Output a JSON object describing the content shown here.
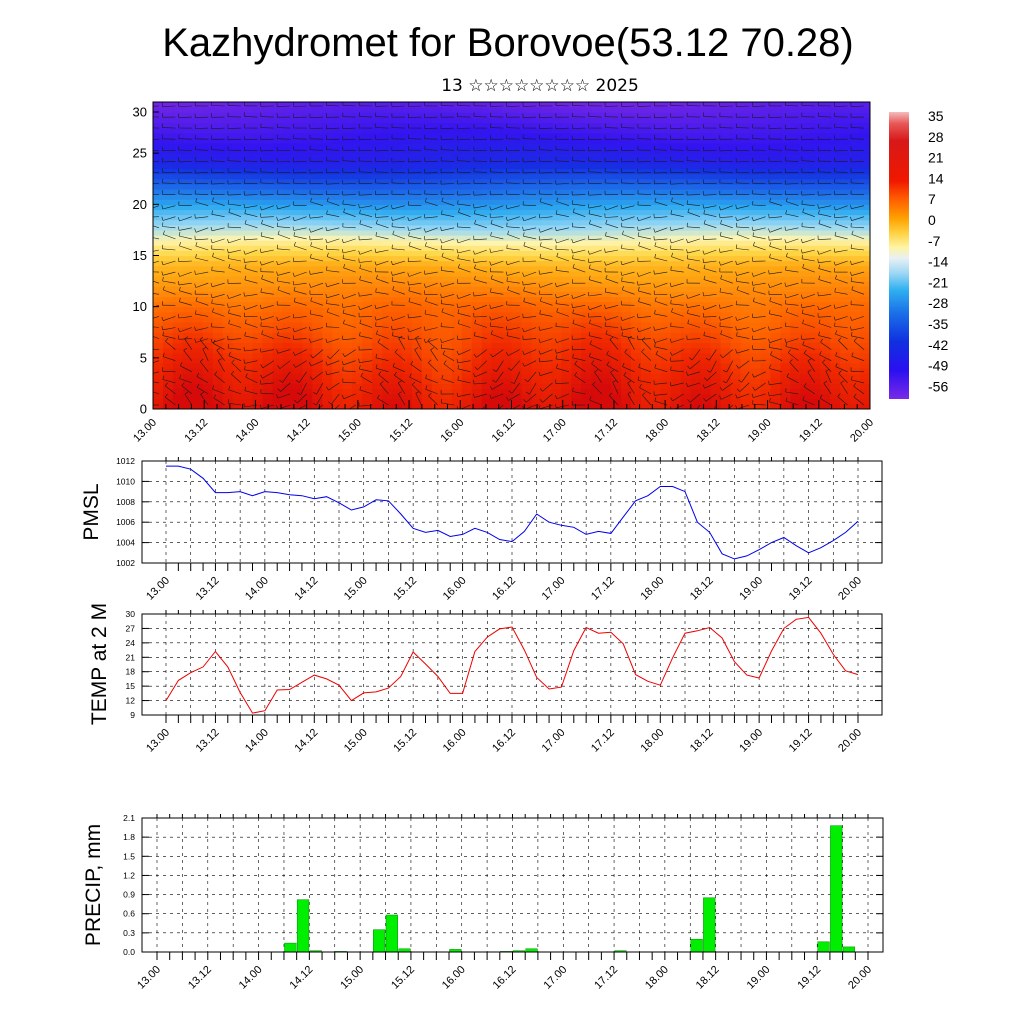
{
  "title": "Kazhydromet for Borovoe(53.12 70.28)",
  "subtitle": "13 ☆☆☆☆☆☆☆☆ 2025",
  "date_labels": [
    "13.00",
    "13.12",
    "14.00",
    "14.12",
    "15.00",
    "15.12",
    "16.00",
    "16.12",
    "17.00",
    "17.12",
    "18.00",
    "18.12",
    "19.00",
    "19.12",
    "20.00"
  ],
  "colors": {
    "pmsl_line": "#0000ee",
    "temp_line": "#ee0000",
    "precip_bar": "#00ee00",
    "precip_edge": "#008800"
  },
  "chart_data": [
    {
      "type": "heatmap",
      "name": "cross-section",
      "ylim": [
        0,
        30
      ],
      "yticks": [
        "0",
        "5",
        "10",
        "15",
        "20",
        "25",
        "30"
      ],
      "colorbar": {
        "labels": [
          "35",
          "28",
          "21",
          "14",
          "7",
          "0",
          "-7",
          "-14",
          "-21",
          "-28",
          "-35",
          "-42",
          "-49",
          "-56"
        ]
      },
      "temperature_profile": [
        {
          "level": 0,
          "value": 30
        },
        {
          "level": 5,
          "value": 21
        },
        {
          "level": 10,
          "value": 12
        },
        {
          "level": 14,
          "value": 2
        },
        {
          "level": 17,
          "value": -16
        },
        {
          "level": 20,
          "value": -30
        },
        {
          "level": 24,
          "value": -48
        },
        {
          "level": 30,
          "value": -58
        }
      ],
      "overlay": "wind barbs"
    },
    {
      "type": "line",
      "name": "PMSL",
      "ylabel": "PMSL",
      "ylim": [
        1002,
        1012
      ],
      "yticks": [
        "1002",
        "1004",
        "1006",
        "1008",
        "1010",
        "1012"
      ],
      "x_start": "13.00",
      "x_step_hours": 3,
      "values": [
        1011.5,
        1011.5,
        1011.2,
        1010.3,
        1008.9,
        1008.9,
        1009.0,
        1008.6,
        1009.0,
        1008.9,
        1008.7,
        1008.6,
        1008.3,
        1008.5,
        1007.9,
        1007.2,
        1007.5,
        1008.2,
        1008.1,
        1006.8,
        1005.4,
        1005.0,
        1005.2,
        1004.6,
        1004.8,
        1005.4,
        1005.0,
        1004.3,
        1004.1,
        1005.1,
        1006.8,
        1006.0,
        1005.7,
        1005.5,
        1004.8,
        1005.1,
        1004.9,
        1006.5,
        1008.1,
        1008.6,
        1009.5,
        1009.5,
        1009.0,
        1006.0,
        1005.0,
        1002.9,
        1002.4,
        1002.7,
        1003.3,
        1004.0,
        1004.5,
        1003.7,
        1003.0,
        1003.5,
        1004.2,
        1005.0,
        1006.1
      ]
    },
    {
      "type": "line",
      "name": "TEMP at 2 M",
      "ylabel": "TEMP at 2 M",
      "ylim": [
        9,
        30
      ],
      "yticks": [
        "9",
        "12",
        "15",
        "18",
        "21",
        "24",
        "27",
        "30"
      ],
      "x_start": "13.00",
      "x_step_hours": 3,
      "values": [
        12.0,
        16.2,
        17.8,
        19.0,
        22.2,
        19.0,
        13.7,
        9.4,
        9.9,
        14.2,
        14.3,
        15.8,
        17.3,
        16.5,
        15.2,
        12.0,
        13.6,
        13.8,
        14.6,
        17.0,
        22.1,
        19.6,
        17.0,
        13.5,
        13.5,
        22.2,
        25.2,
        26.9,
        27.3,
        22.5,
        16.8,
        14.4,
        14.8,
        22.4,
        27.2,
        26.0,
        26.2,
        23.8,
        17.4,
        16.0,
        15.2,
        20.9,
        26.0,
        26.5,
        27.2,
        25.0,
        20.1,
        17.3,
        16.7,
        22.3,
        27.0,
        28.9,
        29.3,
        26.0,
        21.6,
        18.2,
        17.4
      ]
    },
    {
      "type": "bar",
      "name": "PRECIP, mm",
      "ylabel": "PRECIP, mm",
      "ylim": [
        0,
        2.1
      ],
      "yticks": [
        "0.0",
        "0.3",
        "0.6",
        "0.9",
        "1.2",
        "1.5",
        "1.8",
        "2.1"
      ],
      "x_start": "13.00",
      "x_step_hours": 3,
      "values": [
        0,
        0,
        0,
        0,
        0,
        0,
        0,
        0,
        0,
        0,
        0.14,
        0.82,
        0.02,
        0,
        0.01,
        0,
        0,
        0.35,
        0.58,
        0.05,
        0,
        0,
        0,
        0.04,
        0,
        0,
        0,
        0.01,
        0.02,
        0.05,
        0,
        0,
        0,
        0,
        0,
        0,
        0.02,
        0,
        0,
        0,
        0,
        0,
        0.2,
        0.85,
        0,
        0,
        0,
        0,
        0,
        0,
        0,
        0,
        0.16,
        1.98,
        0.08,
        0,
        0
      ]
    }
  ]
}
